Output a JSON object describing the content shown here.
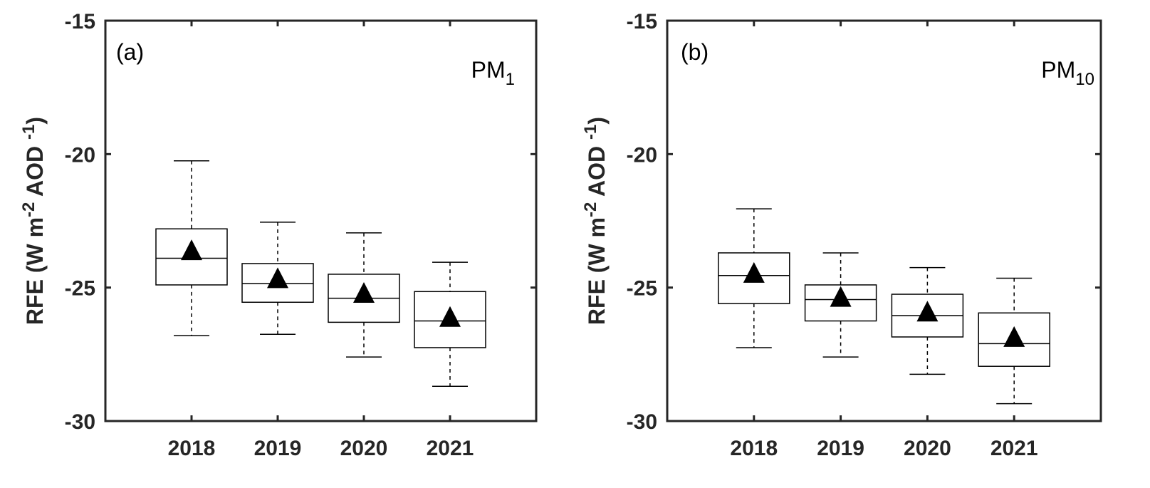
{
  "chart_data": [
    {
      "type": "box",
      "panel_label": "(a)",
      "species": {
        "main": "PM",
        "sub": "1"
      },
      "ylabel": {
        "main": "RFE (W m",
        "sup1": "-2",
        "mid": " AOD ",
        "sup2": "-1",
        "end": ")"
      },
      "ylim": [
        -30,
        -15
      ],
      "yticks": [
        -30,
        -25,
        -20,
        -15
      ],
      "ytick_labels": [
        "-30",
        "-25",
        "-20",
        "-15"
      ],
      "categories": [
        "2018",
        "2019",
        "2020",
        "2021"
      ],
      "boxes": [
        {
          "category": "2018",
          "whisker_low": -26.8,
          "q1": -24.9,
          "median": -23.9,
          "q3": -22.8,
          "whisker_high": -20.25,
          "mean": -23.65
        },
        {
          "category": "2019",
          "whisker_low": -26.75,
          "q1": -25.55,
          "median": -24.85,
          "q3": -24.1,
          "whisker_high": -22.55,
          "mean": -24.7
        },
        {
          "category": "2020",
          "whisker_low": -27.6,
          "q1": -26.3,
          "median": -25.4,
          "q3": -24.5,
          "whisker_high": -22.95,
          "mean": -25.25
        },
        {
          "category": "2021",
          "whisker_low": -28.7,
          "q1": -27.25,
          "median": -26.25,
          "q3": -25.15,
          "whisker_high": -24.05,
          "mean": -26.15
        }
      ],
      "grid": false
    },
    {
      "type": "box",
      "panel_label": "(b)",
      "species": {
        "main": "PM",
        "sub": "10"
      },
      "ylabel": {
        "main": "RFE (W m",
        "sup1": "-2",
        "mid": " AOD ",
        "sup2": "-1",
        "end": ")"
      },
      "ylim": [
        -30,
        -15
      ],
      "yticks": [
        -30,
        -25,
        -20,
        -15
      ],
      "ytick_labels": [
        "-30",
        "-25",
        "-20",
        "-15"
      ],
      "categories": [
        "2018",
        "2019",
        "2020",
        "2021"
      ],
      "boxes": [
        {
          "category": "2018",
          "whisker_low": -27.25,
          "q1": -25.6,
          "median": -24.55,
          "q3": -23.7,
          "whisker_high": -22.05,
          "mean": -24.5
        },
        {
          "category": "2019",
          "whisker_low": -27.6,
          "q1": -26.25,
          "median": -25.45,
          "q3": -24.9,
          "whisker_high": -23.7,
          "mean": -25.4
        },
        {
          "category": "2020",
          "whisker_low": -28.25,
          "q1": -26.85,
          "median": -26.05,
          "q3": -25.25,
          "whisker_high": -24.25,
          "mean": -25.95
        },
        {
          "category": "2021",
          "whisker_low": -29.35,
          "q1": -27.95,
          "median": -27.1,
          "q3": -25.95,
          "whisker_high": -24.65,
          "mean": -26.9
        }
      ],
      "grid": false
    }
  ]
}
